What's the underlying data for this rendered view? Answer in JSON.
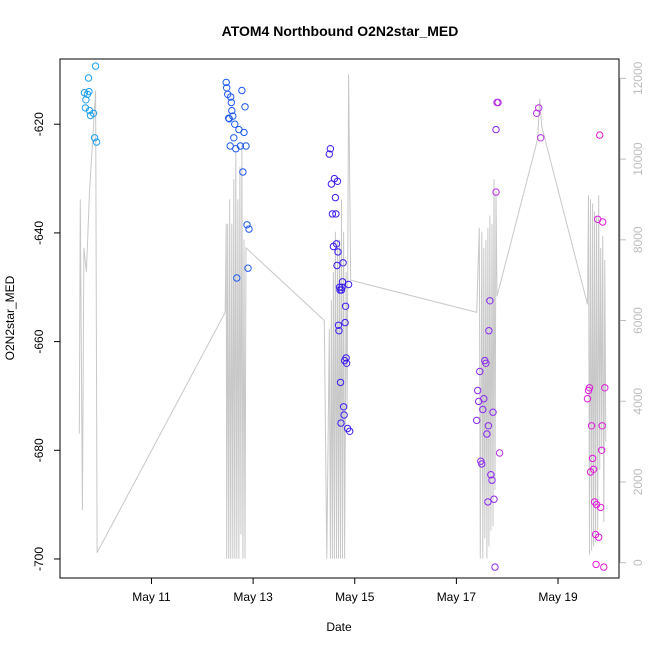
{
  "chart_data": {
    "type": "scatter",
    "title": "ATOM4 Northbound O2N2star_MED",
    "xlabel": "Date",
    "ylabel": "O2N2star_MED",
    "x_ticks": [
      {
        "day": 11,
        "label": "May 11"
      },
      {
        "day": 13,
        "label": "May 13"
      },
      {
        "day": 15,
        "label": "May 15"
      },
      {
        "day": 17,
        "label": "May 17"
      },
      {
        "day": 19,
        "label": "May 19"
      }
    ],
    "xlim": [
      9.2,
      20.2
    ],
    "ylim": [
      -703.5,
      -608
    ],
    "y_ticks": [
      {
        "value": -620,
        "label": "-620"
      },
      {
        "value": -640,
        "label": "-640"
      },
      {
        "value": -660,
        "label": "-660"
      },
      {
        "value": -680,
        "label": "-680"
      },
      {
        "value": -700,
        "label": "-700"
      }
    ],
    "y2lim": [
      -380,
      12480
    ],
    "y2_ticks": [
      {
        "value": 0,
        "label": "0"
      },
      {
        "value": 2000,
        "label": "2000"
      },
      {
        "value": 4000,
        "label": "4000"
      },
      {
        "value": 6000,
        "label": "6000"
      },
      {
        "value": 8000,
        "label": "8000"
      },
      {
        "value": 10000,
        "label": "10000"
      },
      {
        "value": 12000,
        "label": "12000"
      }
    ],
    "point_colors": {
      "group1": "#1ea0f0",
      "group2": "#1f5af0",
      "group3": "#3b1ef0",
      "group4": "#8a28f0",
      "group5": "#b830e6",
      "group6": "#e01ad8"
    },
    "line_color": "#c8c8c8",
    "series": [
      {
        "name": "O2N2star_MED",
        "color_key": "group1",
        "points": [
          [
            9.68,
            -614.2
          ],
          [
            9.71,
            -615.5
          ],
          [
            9.74,
            -614.5
          ],
          [
            9.7,
            -617.0
          ],
          [
            9.76,
            -611.5
          ],
          [
            9.77,
            -614.0
          ],
          [
            9.78,
            -617.5
          ],
          [
            9.8,
            -618.4
          ],
          [
            9.86,
            -618.0
          ],
          [
            9.88,
            -622.5
          ],
          [
            9.9,
            -609.3
          ],
          [
            9.92,
            -623.3
          ]
        ]
      },
      {
        "name": "O2N2star_MED",
        "color_key": "group2",
        "points": [
          [
            12.47,
            -612.3
          ],
          [
            12.48,
            -613.3
          ],
          [
            12.5,
            -614.5
          ],
          [
            12.52,
            -618.9
          ],
          [
            12.53,
            -619.0
          ],
          [
            12.55,
            -624.0
          ],
          [
            12.56,
            -615.0
          ],
          [
            12.57,
            -616.0
          ],
          [
            12.58,
            -617.5
          ],
          [
            12.6,
            -618.5
          ],
          [
            12.62,
            -622.5
          ],
          [
            12.64,
            -620.0
          ],
          [
            12.66,
            -624.5
          ],
          [
            12.68,
            -648.3
          ],
          [
            12.72,
            -621.0
          ],
          [
            12.75,
            -624.0
          ],
          [
            12.78,
            -613.8
          ],
          [
            12.8,
            -628.8
          ],
          [
            12.82,
            -621.5
          ],
          [
            12.84,
            -616.8
          ],
          [
            12.86,
            -624.0
          ],
          [
            12.88,
            -638.5
          ],
          [
            12.9,
            -646.5
          ],
          [
            12.92,
            -639.3
          ]
        ]
      },
      {
        "name": "O2N2star_MED",
        "color_key": "group3",
        "points": [
          [
            14.5,
            -625.5
          ],
          [
            14.52,
            -624.5
          ],
          [
            14.54,
            -631.0
          ],
          [
            14.56,
            -636.5
          ],
          [
            14.58,
            -642.5
          ],
          [
            14.6,
            -630.0
          ],
          [
            14.62,
            -633.5
          ],
          [
            14.63,
            -636.5
          ],
          [
            14.64,
            -642.0
          ],
          [
            14.65,
            -646.0
          ],
          [
            14.66,
            -630.5
          ],
          [
            14.67,
            -643.5
          ],
          [
            14.68,
            -657.0
          ],
          [
            14.69,
            -658.0
          ],
          [
            14.7,
            -650.0
          ],
          [
            14.71,
            -650.5
          ],
          [
            14.72,
            -667.5
          ],
          [
            14.73,
            -675.0
          ],
          [
            14.74,
            -650.5
          ],
          [
            14.75,
            -650.0
          ],
          [
            14.76,
            -649.0
          ],
          [
            14.77,
            -645.5
          ],
          [
            14.78,
            -672.0
          ],
          [
            14.79,
            -673.5
          ],
          [
            14.8,
            -663.5
          ],
          [
            14.81,
            -656.5
          ],
          [
            14.82,
            -653.5
          ],
          [
            14.83,
            -663.0
          ],
          [
            14.84,
            -664.0
          ],
          [
            14.86,
            -676.0
          ],
          [
            14.88,
            -649.5
          ],
          [
            14.9,
            -676.5
          ]
        ]
      },
      {
        "name": "O2N2star_MED",
        "color_key": "group4",
        "points": [
          [
            17.4,
            -674.5
          ],
          [
            17.42,
            -669.0
          ],
          [
            17.44,
            -671.0
          ],
          [
            17.46,
            -665.5
          ],
          [
            17.48,
            -682.0
          ],
          [
            17.5,
            -682.5
          ],
          [
            17.52,
            -672.5
          ],
          [
            17.54,
            -670.5
          ],
          [
            17.56,
            -663.5
          ],
          [
            17.58,
            -664.0
          ],
          [
            17.6,
            -677.0
          ],
          [
            17.62,
            -689.5
          ],
          [
            17.63,
            -675.5
          ],
          [
            17.64,
            -658.0
          ],
          [
            17.66,
            -652.5
          ],
          [
            17.68,
            -684.5
          ],
          [
            17.7,
            -685.5
          ],
          [
            17.72,
            -673.0
          ],
          [
            17.74,
            -689.0
          ],
          [
            17.76,
            -701.5
          ],
          [
            17.78,
            -621.0
          ]
        ]
      },
      {
        "name": "O2N2star_MED",
        "color_key": "group5",
        "points": [
          [
            17.78,
            -632.5
          ],
          [
            17.8,
            -616.0
          ],
          [
            17.82,
            -616.0
          ],
          [
            17.85,
            -680.5
          ],
          [
            18.58,
            -618.0
          ],
          [
            18.62,
            -617.0
          ],
          [
            18.66,
            -622.5
          ]
        ]
      },
      {
        "name": "O2N2star_MED",
        "color_key": "group6",
        "points": [
          [
            19.58,
            -670.5
          ],
          [
            19.6,
            -669.0
          ],
          [
            19.62,
            -668.5
          ],
          [
            19.64,
            -684.0
          ],
          [
            19.66,
            -675.5
          ],
          [
            19.68,
            -681.5
          ],
          [
            19.7,
            -683.5
          ],
          [
            19.72,
            -689.5
          ],
          [
            19.74,
            -695.5
          ],
          [
            19.75,
            -701.0
          ],
          [
            19.76,
            -690.0
          ],
          [
            19.78,
            -637.5
          ],
          [
            19.8,
            -696.0
          ],
          [
            19.82,
            -622.0
          ],
          [
            19.84,
            -690.5
          ],
          [
            19.86,
            -680.0
          ],
          [
            19.87,
            -675.5
          ],
          [
            19.88,
            -638.0
          ],
          [
            19.9,
            -701.5
          ],
          [
            19.92,
            -668.5
          ]
        ]
      }
    ],
    "secondary_line": {
      "name": "gray trace (right axis)",
      "points": [
        [
          9.58,
          3200
        ],
        [
          9.6,
          9000
        ],
        [
          9.64,
          1300
        ],
        [
          9.67,
          7800
        ],
        [
          9.72,
          7200
        ],
        [
          9.78,
          9200
        ],
        [
          9.83,
          10200
        ],
        [
          9.9,
          11700
        ],
        [
          9.93,
          250
        ],
        [
          12.45,
          6200
        ],
        [
          12.47,
          8400
        ],
        [
          12.48,
          100
        ],
        [
          12.5,
          8400
        ],
        [
          12.52,
          100
        ],
        [
          12.54,
          9000
        ],
        [
          12.56,
          100
        ],
        [
          12.58,
          8400
        ],
        [
          12.6,
          100
        ],
        [
          12.62,
          9500
        ],
        [
          12.64,
          100
        ],
        [
          12.66,
          10200
        ],
        [
          12.68,
          100
        ],
        [
          12.7,
          9000
        ],
        [
          12.72,
          100
        ],
        [
          12.74,
          9800
        ],
        [
          12.76,
          700
        ],
        [
          12.78,
          10400
        ],
        [
          12.8,
          100
        ],
        [
          12.82,
          8000
        ],
        [
          12.84,
          100
        ],
        [
          12.86,
          7800
        ],
        [
          14.4,
          6000
        ],
        [
          14.45,
          100
        ],
        [
          14.5,
          5800
        ],
        [
          14.52,
          100
        ],
        [
          14.54,
          6500
        ],
        [
          14.56,
          100
        ],
        [
          14.58,
          7200
        ],
        [
          14.6,
          100
        ],
        [
          14.62,
          8200
        ],
        [
          14.64,
          100
        ],
        [
          14.66,
          8000
        ],
        [
          14.68,
          100
        ],
        [
          14.7,
          8000
        ],
        [
          14.72,
          100
        ],
        [
          14.74,
          9000
        ],
        [
          14.76,
          100
        ],
        [
          14.78,
          8200
        ],
        [
          14.8,
          100
        ],
        [
          14.83,
          7200
        ],
        [
          14.85,
          3800
        ],
        [
          14.88,
          12100
        ],
        [
          14.92,
          7000
        ],
        [
          17.4,
          6200
        ],
        [
          17.45,
          8300
        ],
        [
          17.47,
          100
        ],
        [
          17.5,
          8200
        ],
        [
          17.52,
          100
        ],
        [
          17.54,
          7800
        ],
        [
          17.56,
          600
        ],
        [
          17.58,
          8000
        ],
        [
          17.6,
          100
        ],
        [
          17.62,
          8300
        ],
        [
          17.64,
          400
        ],
        [
          17.66,
          8600
        ],
        [
          17.68,
          800
        ],
        [
          17.7,
          8400
        ],
        [
          17.72,
          900
        ],
        [
          17.74,
          9500
        ],
        [
          17.76,
          1800
        ],
        [
          17.78,
          9200
        ],
        [
          17.8,
          6600
        ],
        [
          18.6,
          10500
        ],
        [
          18.64,
          11500
        ],
        [
          18.68,
          10800
        ],
        [
          19.58,
          6400
        ],
        [
          19.6,
          9100
        ],
        [
          19.62,
          200
        ],
        [
          19.64,
          9000
        ],
        [
          19.66,
          300
        ],
        [
          19.68,
          8900
        ],
        [
          19.7,
          400
        ],
        [
          19.72,
          8700
        ],
        [
          19.74,
          500
        ],
        [
          19.76,
          8600
        ],
        [
          19.78,
          800
        ],
        [
          19.8,
          9100
        ],
        [
          19.82,
          2300
        ],
        [
          19.84,
          7800
        ],
        [
          19.86,
          2800
        ],
        [
          19.88,
          8100
        ],
        [
          19.9,
          1000
        ],
        [
          19.92,
          7500
        ],
        [
          19.94,
          3000
        ]
      ]
    }
  }
}
